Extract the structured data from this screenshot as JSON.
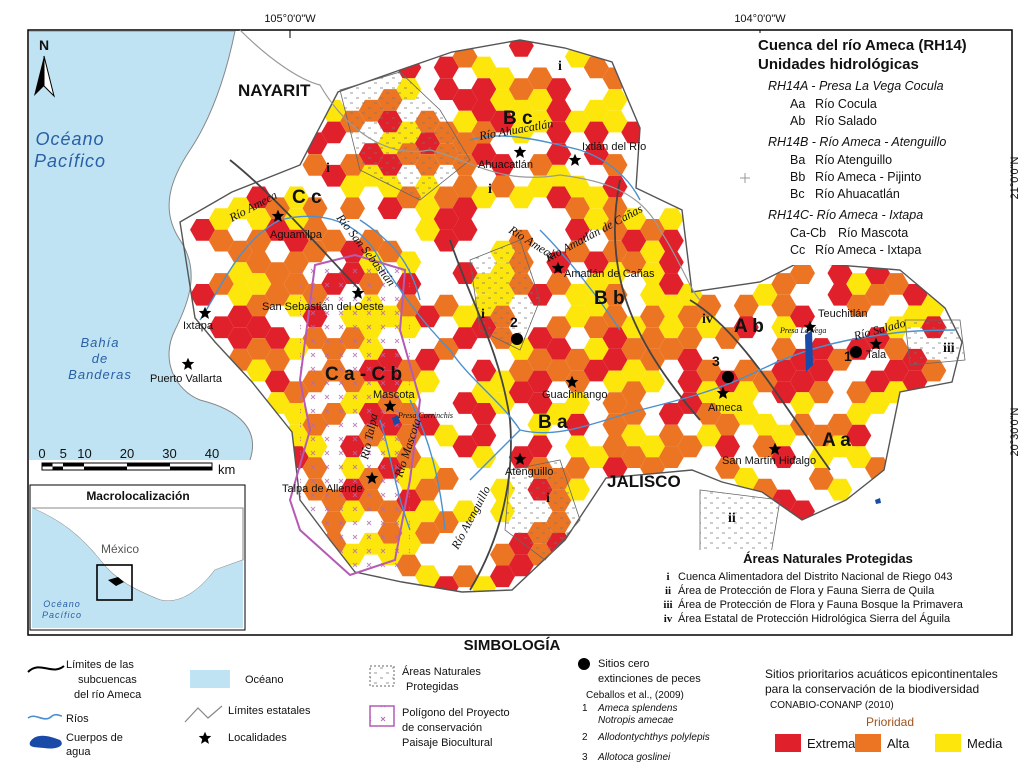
{
  "map": {
    "coordinates": {
      "lon": [
        "105°0'0\"W",
        "104°0'0\"W"
      ],
      "lat": [
        "21°0'0\"N",
        "20°30'0\"N"
      ]
    },
    "north": "N",
    "regions": [
      "NAYARIT",
      "JALISCO"
    ],
    "ocean": [
      "Océano",
      "Pacífico"
    ],
    "bay": [
      "Bahía",
      "de",
      "Banderas"
    ],
    "localities": [
      "Aguamilpa",
      "Ixtapa",
      "Puerto Vallarta",
      "San Sebastián del Oeste",
      "Mascota",
      "Talpa de Allende",
      "Ahuacatlán",
      "Ixtlán del Río",
      "Amatlán de Cañas",
      "Guachinango",
      "Atenguillo",
      "Ameca",
      "San Martín Hidalgo",
      "Teuchitlán",
      "Tala"
    ],
    "units": [
      "B c",
      "C c",
      "C a - C b",
      "B b",
      "B a",
      "A b",
      "A a"
    ],
    "protected": [
      "i",
      "i",
      "i",
      "i",
      "i",
      "ii",
      "iii",
      "iv"
    ],
    "sites": [
      1,
      2,
      3
    ],
    "rivers": [
      "Río Ameca",
      "Río San Sebastián",
      "Río Ahuacatlán",
      "Río Ameca",
      "Río Amatlán de Cañas",
      "Río Talpa",
      "Río Mascota",
      "Río Atenguillo",
      "Río Salado"
    ],
    "dams": [
      "Presa Corrinchis",
      "Presa La Vega"
    ],
    "scale": {
      "ticks": [
        0,
        5,
        10,
        20,
        30,
        40
      ],
      "unit": "km"
    }
  },
  "inset": {
    "title": "Macrolocalización",
    "country": "México",
    "ocean": [
      "Océano",
      "Pacífico"
    ]
  },
  "units_legend": {
    "title": [
      "Cuenca del río Ameca (RH14)",
      "Unidades hidrológicas"
    ],
    "groups": [
      {
        "name": "RH14A - Presa La Vega Cocula",
        "items": [
          {
            "code": "Aa",
            "name": "Río Cocula"
          },
          {
            "code": "Ab",
            "name": "Río Salado"
          }
        ]
      },
      {
        "name": "RH14B - Río Ameca - Atenguillo",
        "items": [
          {
            "code": "Ba",
            "name": "Río Atenguillo"
          },
          {
            "code": "Bb",
            "name": "Río Ameca - Pijinto"
          },
          {
            "code": "Bc",
            "name": "Río Ahuacatlán"
          }
        ]
      },
      {
        "name": "RH14C- Río Ameca - Ixtapa",
        "items": [
          {
            "code": "Ca-Cb",
            "name": "Río Mascota"
          },
          {
            "code": "Cc",
            "name": "Río Ameca - Ixtapa"
          }
        ]
      }
    ]
  },
  "protected_areas": {
    "title": "Áreas Naturales Protegidas",
    "items": [
      {
        "code": "i",
        "name": "Cuenca Alimentadora del Distrito Nacional de Riego 043"
      },
      {
        "code": "ii",
        "name": "Área de Protección de Flora y Fauna Sierra de Quila"
      },
      {
        "code": "iii",
        "name": "Área de Protección de Flora y Fauna Bosque la Primavera"
      },
      {
        "code": "iv",
        "name": "Área Estatal de Protección Hidrológica Sierra del Águila"
      }
    ]
  },
  "legend": {
    "title": "SIMBOLOGÍA",
    "subbasins": [
      "Límites de las",
      "subcuencas",
      "del río Ameca"
    ],
    "rivers": "Ríos",
    "water": [
      "Cuerpos de",
      "agua"
    ],
    "ocean": "Océano",
    "states": "Límites estatales",
    "localities": "Localidades",
    "protected": [
      "Áreas Naturales",
      "Protegidas"
    ],
    "polygon": [
      "Polígono del Proyecto",
      "de conservación",
      "Paisaje Biocultural"
    ],
    "extinction": {
      "title": [
        "Sitios cero",
        "extinciones de peces"
      ],
      "source": "Ceballos et al., (2009)",
      "species": [
        {
          "code": 1,
          "names": [
            "Ameca splendens",
            "Notropis amecae"
          ]
        },
        {
          "code": 2,
          "names": [
            "Allodontychthys polylepis"
          ]
        },
        {
          "code": 3,
          "names": [
            "Allotoca goslinei"
          ]
        }
      ]
    },
    "priority": {
      "title": [
        "Sitios prioritarios acuáticos epicontinentales",
        "para la conservación de la biodiversidad"
      ],
      "source": "CONABIO-CONANP (2010)",
      "label": "Prioridad",
      "levels": [
        "Extrema",
        "Alta",
        "Media"
      ]
    }
  }
}
